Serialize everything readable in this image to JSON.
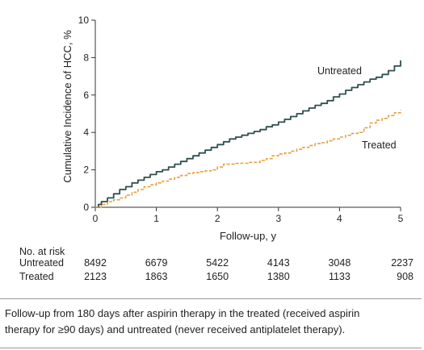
{
  "chart_data": {
    "type": "line",
    "title": "",
    "xlabel": "Follow-up, y",
    "ylabel": "Cumulative Incidence of HCC, %",
    "xlim": [
      0,
      5
    ],
    "ylim": [
      0,
      10
    ],
    "xticks": [
      "0",
      "1",
      "2",
      "3",
      "4",
      "5"
    ],
    "yticks": [
      "0",
      "2",
      "4",
      "6",
      "8",
      "10"
    ],
    "grid": false,
    "series": [
      {
        "name": "Untreated",
        "color": "#2f4f4f",
        "style": "solid",
        "x": [
          0,
          0.05,
          0.1,
          0.2,
          0.3,
          0.4,
          0.5,
          0.6,
          0.7,
          0.8,
          0.9,
          1.0,
          1.1,
          1.2,
          1.3,
          1.4,
          1.5,
          1.6,
          1.7,
          1.8,
          1.9,
          2.0,
          2.1,
          2.2,
          2.3,
          2.4,
          2.5,
          2.6,
          2.7,
          2.8,
          2.9,
          3.0,
          3.1,
          3.2,
          3.3,
          3.4,
          3.5,
          3.6,
          3.7,
          3.8,
          3.9,
          4.0,
          4.1,
          4.2,
          4.3,
          4.4,
          4.5,
          4.6,
          4.7,
          4.8,
          4.9,
          5.0
        ],
        "y": [
          0,
          0.15,
          0.3,
          0.5,
          0.72,
          0.95,
          1.1,
          1.3,
          1.45,
          1.6,
          1.75,
          1.9,
          2.0,
          2.15,
          2.3,
          2.45,
          2.6,
          2.75,
          2.9,
          3.05,
          3.2,
          3.35,
          3.5,
          3.65,
          3.75,
          3.85,
          3.95,
          4.05,
          4.15,
          4.3,
          4.4,
          4.55,
          4.7,
          4.85,
          5.0,
          5.15,
          5.3,
          5.45,
          5.55,
          5.7,
          5.9,
          6.05,
          6.25,
          6.4,
          6.55,
          6.7,
          6.85,
          6.95,
          7.1,
          7.3,
          7.55,
          7.85
        ]
      },
      {
        "name": "Treated",
        "color": "#e8a040",
        "style": "dashed",
        "x": [
          0,
          0.1,
          0.2,
          0.3,
          0.4,
          0.5,
          0.6,
          0.7,
          0.8,
          0.9,
          1.0,
          1.1,
          1.2,
          1.3,
          1.4,
          1.5,
          1.6,
          1.7,
          1.8,
          1.9,
          2.0,
          2.1,
          2.2,
          2.3,
          2.4,
          2.5,
          2.6,
          2.7,
          2.8,
          2.9,
          3.0,
          3.1,
          3.2,
          3.3,
          3.4,
          3.5,
          3.6,
          3.7,
          3.8,
          3.9,
          4.0,
          4.1,
          4.2,
          4.3,
          4.4,
          4.5,
          4.6,
          4.7,
          4.8,
          4.9,
          5.0
        ],
        "y": [
          0,
          0.15,
          0.3,
          0.4,
          0.5,
          0.65,
          0.8,
          0.95,
          1.1,
          1.2,
          1.3,
          1.4,
          1.5,
          1.6,
          1.7,
          1.8,
          1.85,
          1.9,
          1.95,
          2.0,
          2.15,
          2.3,
          2.3,
          2.35,
          2.35,
          2.4,
          2.4,
          2.5,
          2.6,
          2.75,
          2.85,
          2.9,
          3.0,
          3.1,
          3.2,
          3.3,
          3.4,
          3.45,
          3.55,
          3.65,
          3.75,
          3.85,
          3.95,
          4.0,
          4.25,
          4.5,
          4.65,
          4.75,
          4.9,
          5.05,
          5.2
        ]
      }
    ],
    "risk_table": {
      "title": "No. at risk",
      "rows": [
        {
          "label": "Untreated",
          "values": [
            "8492",
            "6679",
            "5422",
            "4143",
            "3048",
            "2237"
          ]
        },
        {
          "label": "Treated",
          "values": [
            "2123",
            "1863",
            "1650",
            "1380",
            "1133",
            "908"
          ]
        }
      ]
    }
  },
  "caption": {
    "line1": "Follow-up from 180 days after aspirin therapy in the treated (received aspirin",
    "line2": "therapy for ≥90 days) and untreated (never received antiplatelet therapy)."
  }
}
